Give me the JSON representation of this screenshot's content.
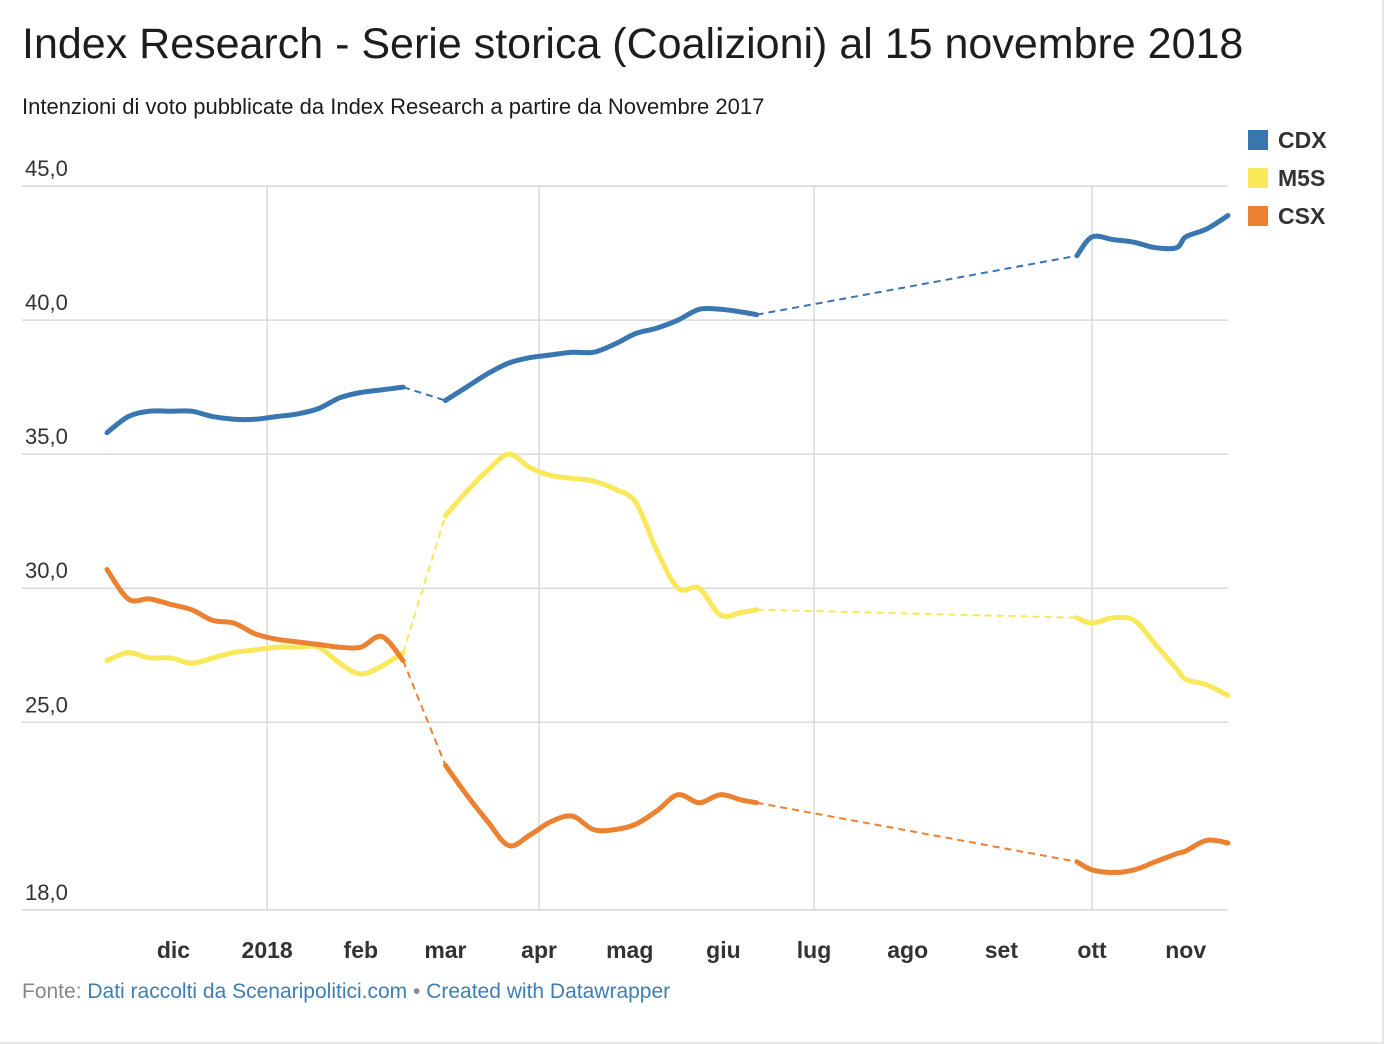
{
  "chart_data": {
    "type": "line",
    "title": "Index Research - Serie storica (Coalizioni) al 15 novembre 2018",
    "subtitle": "Intenzioni di voto pubblicate da Index Research a partire da Novembre 2017",
    "ylim": [
      18,
      45
    ],
    "y_ticks": [
      {
        "value": 45,
        "label": "45,0"
      },
      {
        "value": 40,
        "label": "40,0"
      },
      {
        "value": 35,
        "label": "35,0"
      },
      {
        "value": 30,
        "label": "30,0"
      },
      {
        "value": 25,
        "label": "25,0"
      },
      {
        "value": 18,
        "label": "18,0"
      }
    ],
    "xlim": [
      "2017-11-09",
      "2018-11-15"
    ],
    "x_ticks": [
      {
        "date": "2017-12-01",
        "label": "dic"
      },
      {
        "date": "2018-01-01",
        "label": "2018"
      },
      {
        "date": "2018-02-01",
        "label": "feb"
      },
      {
        "date": "2018-03-01",
        "label": "mar"
      },
      {
        "date": "2018-04-01",
        "label": "apr"
      },
      {
        "date": "2018-05-01",
        "label": "mag"
      },
      {
        "date": "2018-06-01",
        "label": "giu"
      },
      {
        "date": "2018-07-01",
        "label": "lug"
      },
      {
        "date": "2018-08-01",
        "label": "ago"
      },
      {
        "date": "2018-09-01",
        "label": "set"
      },
      {
        "date": "2018-10-01",
        "label": "ott"
      },
      {
        "date": "2018-11-01",
        "label": "nov"
      }
    ],
    "x_gridlines": [
      "2018-01-01",
      "2018-04-01",
      "2018-07-01",
      "2018-10-01"
    ],
    "grid": true,
    "legend": "top-right",
    "gaps": [
      [
        "2018-02-15",
        "2018-03-01"
      ],
      [
        "2018-06-12",
        "2018-09-26"
      ]
    ],
    "series": [
      {
        "name": "CDX",
        "color": "#3a76af",
        "points": [
          [
            "2017-11-09",
            35.8
          ],
          [
            "2017-11-16",
            36.4
          ],
          [
            "2017-11-23",
            36.6
          ],
          [
            "2017-11-30",
            36.6
          ],
          [
            "2017-12-07",
            36.6
          ],
          [
            "2017-12-14",
            36.4
          ],
          [
            "2017-12-21",
            36.3
          ],
          [
            "2017-12-28",
            36.3
          ],
          [
            "2018-01-04",
            36.4
          ],
          [
            "2018-01-11",
            36.5
          ],
          [
            "2018-01-18",
            36.7
          ],
          [
            "2018-01-25",
            37.1
          ],
          [
            "2018-02-01",
            37.3
          ],
          [
            "2018-02-08",
            37.4
          ],
          [
            "2018-02-15",
            37.5
          ],
          [
            "2018-03-01",
            37.0
          ],
          [
            "2018-03-08",
            37.5
          ],
          [
            "2018-03-15",
            38.0
          ],
          [
            "2018-03-22",
            38.4
          ],
          [
            "2018-03-29",
            38.6
          ],
          [
            "2018-04-05",
            38.7
          ],
          [
            "2018-04-12",
            38.8
          ],
          [
            "2018-04-19",
            38.8
          ],
          [
            "2018-04-26",
            39.1
          ],
          [
            "2018-05-03",
            39.5
          ],
          [
            "2018-05-10",
            39.7
          ],
          [
            "2018-05-17",
            40.0
          ],
          [
            "2018-05-24",
            40.4
          ],
          [
            "2018-05-31",
            40.4
          ],
          [
            "2018-06-07",
            40.3
          ],
          [
            "2018-06-12",
            40.2
          ],
          [
            "2018-09-26",
            42.4
          ],
          [
            "2018-10-01",
            43.1
          ],
          [
            "2018-10-08",
            43.0
          ],
          [
            "2018-10-15",
            42.9
          ],
          [
            "2018-10-22",
            42.7
          ],
          [
            "2018-10-29",
            42.7
          ],
          [
            "2018-11-01",
            43.1
          ],
          [
            "2018-11-08",
            43.4
          ],
          [
            "2018-11-15",
            43.9
          ]
        ]
      },
      {
        "name": "M5S",
        "color": "#f9e85a",
        "points": [
          [
            "2017-11-09",
            27.3
          ],
          [
            "2017-11-16",
            27.6
          ],
          [
            "2017-11-23",
            27.4
          ],
          [
            "2017-11-30",
            27.4
          ],
          [
            "2017-12-07",
            27.2
          ],
          [
            "2017-12-14",
            27.4
          ],
          [
            "2017-12-21",
            27.6
          ],
          [
            "2017-12-28",
            27.7
          ],
          [
            "2018-01-04",
            27.8
          ],
          [
            "2018-01-11",
            27.8
          ],
          [
            "2018-01-18",
            27.8
          ],
          [
            "2018-01-25",
            27.2
          ],
          [
            "2018-02-01",
            26.8
          ],
          [
            "2018-02-08",
            27.1
          ],
          [
            "2018-02-15",
            27.6
          ],
          [
            "2018-03-01",
            32.7
          ],
          [
            "2018-03-08",
            33.6
          ],
          [
            "2018-03-15",
            34.4
          ],
          [
            "2018-03-22",
            35.0
          ],
          [
            "2018-03-29",
            34.5
          ],
          [
            "2018-04-05",
            34.2
          ],
          [
            "2018-04-12",
            34.1
          ],
          [
            "2018-04-19",
            34.0
          ],
          [
            "2018-04-26",
            33.7
          ],
          [
            "2018-05-03",
            33.2
          ],
          [
            "2018-05-10",
            31.4
          ],
          [
            "2018-05-17",
            30.0
          ],
          [
            "2018-05-24",
            30.0
          ],
          [
            "2018-05-31",
            29.0
          ],
          [
            "2018-06-07",
            29.1
          ],
          [
            "2018-06-12",
            29.2
          ],
          [
            "2018-09-26",
            28.9
          ],
          [
            "2018-10-01",
            28.7
          ],
          [
            "2018-10-08",
            28.9
          ],
          [
            "2018-10-15",
            28.8
          ],
          [
            "2018-10-22",
            27.9
          ],
          [
            "2018-10-29",
            27.0
          ],
          [
            "2018-11-01",
            26.6
          ],
          [
            "2018-11-08",
            26.4
          ],
          [
            "2018-11-15",
            26.0
          ]
        ]
      },
      {
        "name": "CSX",
        "color": "#ec8131",
        "points": [
          [
            "2017-11-09",
            30.7
          ],
          [
            "2017-11-16",
            29.6
          ],
          [
            "2017-11-23",
            29.6
          ],
          [
            "2017-11-30",
            29.4
          ],
          [
            "2017-12-07",
            29.2
          ],
          [
            "2017-12-14",
            28.8
          ],
          [
            "2017-12-21",
            28.7
          ],
          [
            "2017-12-28",
            28.3
          ],
          [
            "2018-01-04",
            28.1
          ],
          [
            "2018-01-11",
            28.0
          ],
          [
            "2018-01-18",
            27.9
          ],
          [
            "2018-01-25",
            27.8
          ],
          [
            "2018-02-01",
            27.8
          ],
          [
            "2018-02-08",
            28.2
          ],
          [
            "2018-02-15",
            27.3
          ],
          [
            "2018-03-01",
            23.4
          ],
          [
            "2018-03-08",
            22.3
          ],
          [
            "2018-03-15",
            21.3
          ],
          [
            "2018-03-22",
            20.4
          ],
          [
            "2018-03-29",
            20.8
          ],
          [
            "2018-04-05",
            21.3
          ],
          [
            "2018-04-12",
            21.5
          ],
          [
            "2018-04-19",
            21.0
          ],
          [
            "2018-04-26",
            21.0
          ],
          [
            "2018-05-03",
            21.2
          ],
          [
            "2018-05-10",
            21.7
          ],
          [
            "2018-05-17",
            22.3
          ],
          [
            "2018-05-24",
            22.0
          ],
          [
            "2018-05-31",
            22.3
          ],
          [
            "2018-06-07",
            22.1
          ],
          [
            "2018-06-12",
            22.0
          ],
          [
            "2018-09-26",
            19.8
          ],
          [
            "2018-10-01",
            19.5
          ],
          [
            "2018-10-08",
            19.4
          ],
          [
            "2018-10-15",
            19.5
          ],
          [
            "2018-10-22",
            19.8
          ],
          [
            "2018-10-29",
            20.1
          ],
          [
            "2018-11-01",
            20.2
          ],
          [
            "2018-11-08",
            20.6
          ],
          [
            "2018-11-15",
            20.5
          ]
        ]
      }
    ]
  },
  "footer": {
    "prefix": "Fonte: ",
    "source_link": "Dati raccolti da Scenaripolitici.com",
    "separator": " • ",
    "credit_link": "Created with Datawrapper"
  }
}
